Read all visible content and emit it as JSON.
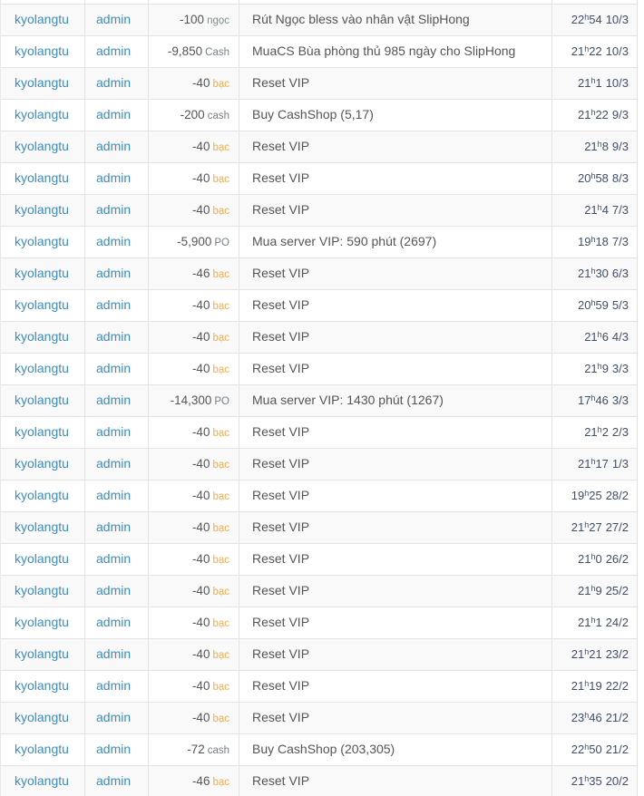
{
  "table": {
    "hour_separator": "h",
    "colors": {
      "link": "#3c8dbc",
      "text": "#555555",
      "time": "#3f5068",
      "ngoc": "#7d9180",
      "bac": "#f0ad4e",
      "gray": "#75808a",
      "stripe": "#f9f9f9",
      "border": "#e3e3e3"
    },
    "rows": [
      {
        "username": "kyolangtu",
        "admin": "admin",
        "amount": "-100",
        "unit": "ngọc",
        "unit_style": "ngoc",
        "description": "Rút Ngọc bless vào nhân vật SlipHong",
        "hour": "22",
        "minute": "54",
        "date": "10/3"
      },
      {
        "username": "kyolangtu",
        "admin": "admin",
        "amount": "-9,850",
        "unit": "Cash",
        "unit_style": "gray",
        "description": "MuaCS Bùa phòng thủ 985 ngày cho SlipHong",
        "hour": "21",
        "minute": "22",
        "date": "10/3"
      },
      {
        "username": "kyolangtu",
        "admin": "admin",
        "amount": "-40",
        "unit": "bạc",
        "unit_style": "bac",
        "description": "Reset VIP",
        "hour": "21",
        "minute": "1",
        "date": "10/3"
      },
      {
        "username": "kyolangtu",
        "admin": "admin",
        "amount": "-200",
        "unit": "cash",
        "unit_style": "gray",
        "description": "Buy CashShop (5,17)",
        "hour": "21",
        "minute": "22",
        "date": "9/3"
      },
      {
        "username": "kyolangtu",
        "admin": "admin",
        "amount": "-40",
        "unit": "bạc",
        "unit_style": "bac",
        "description": "Reset VIP",
        "hour": "21",
        "minute": "8",
        "date": "9/3"
      },
      {
        "username": "kyolangtu",
        "admin": "admin",
        "amount": "-40",
        "unit": "bạc",
        "unit_style": "bac",
        "description": "Reset VIP",
        "hour": "20",
        "minute": "58",
        "date": "8/3"
      },
      {
        "username": "kyolangtu",
        "admin": "admin",
        "amount": "-40",
        "unit": "bạc",
        "unit_style": "bac",
        "description": "Reset VIP",
        "hour": "21",
        "minute": "4",
        "date": "7/3"
      },
      {
        "username": "kyolangtu",
        "admin": "admin",
        "amount": "-5,900",
        "unit": "PO",
        "unit_style": "gray",
        "description": "Mua server VIP: 590 phút (2697)",
        "hour": "19",
        "minute": "18",
        "date": "7/3"
      },
      {
        "username": "kyolangtu",
        "admin": "admin",
        "amount": "-46",
        "unit": "bạc",
        "unit_style": "bac",
        "description": "Reset VIP",
        "hour": "21",
        "minute": "30",
        "date": "6/3"
      },
      {
        "username": "kyolangtu",
        "admin": "admin",
        "amount": "-40",
        "unit": "bạc",
        "unit_style": "bac",
        "description": "Reset VIP",
        "hour": "20",
        "minute": "59",
        "date": "5/3"
      },
      {
        "username": "kyolangtu",
        "admin": "admin",
        "amount": "-40",
        "unit": "bạc",
        "unit_style": "bac",
        "description": "Reset VIP",
        "hour": "21",
        "minute": "6",
        "date": "4/3"
      },
      {
        "username": "kyolangtu",
        "admin": "admin",
        "amount": "-40",
        "unit": "bạc",
        "unit_style": "bac",
        "description": "Reset VIP",
        "hour": "21",
        "minute": "9",
        "date": "3/3"
      },
      {
        "username": "kyolangtu",
        "admin": "admin",
        "amount": "-14,300",
        "unit": "PO",
        "unit_style": "gray",
        "description": "Mua server VIP: 1430 phút (1267)",
        "hour": "17",
        "minute": "46",
        "date": "3/3"
      },
      {
        "username": "kyolangtu",
        "admin": "admin",
        "amount": "-40",
        "unit": "bạc",
        "unit_style": "bac",
        "description": "Reset VIP",
        "hour": "21",
        "minute": "2",
        "date": "2/3"
      },
      {
        "username": "kyolangtu",
        "admin": "admin",
        "amount": "-40",
        "unit": "bạc",
        "unit_style": "bac",
        "description": "Reset VIP",
        "hour": "21",
        "minute": "17",
        "date": "1/3"
      },
      {
        "username": "kyolangtu",
        "admin": "admin",
        "amount": "-40",
        "unit": "bạc",
        "unit_style": "bac",
        "description": "Reset VIP",
        "hour": "19",
        "minute": "25",
        "date": "28/2"
      },
      {
        "username": "kyolangtu",
        "admin": "admin",
        "amount": "-40",
        "unit": "bạc",
        "unit_style": "bac",
        "description": "Reset VIP",
        "hour": "21",
        "minute": "27",
        "date": "27/2"
      },
      {
        "username": "kyolangtu",
        "admin": "admin",
        "amount": "-40",
        "unit": "bạc",
        "unit_style": "bac",
        "description": "Reset VIP",
        "hour": "21",
        "minute": "0",
        "date": "26/2"
      },
      {
        "username": "kyolangtu",
        "admin": "admin",
        "amount": "-40",
        "unit": "bạc",
        "unit_style": "bac",
        "description": "Reset VIP",
        "hour": "21",
        "minute": "9",
        "date": "25/2"
      },
      {
        "username": "kyolangtu",
        "admin": "admin",
        "amount": "-40",
        "unit": "bạc",
        "unit_style": "bac",
        "description": "Reset VIP",
        "hour": "21",
        "minute": "1",
        "date": "24/2"
      },
      {
        "username": "kyolangtu",
        "admin": "admin",
        "amount": "-40",
        "unit": "bạc",
        "unit_style": "bac",
        "description": "Reset VIP",
        "hour": "21",
        "minute": "21",
        "date": "23/2"
      },
      {
        "username": "kyolangtu",
        "admin": "admin",
        "amount": "-40",
        "unit": "bạc",
        "unit_style": "bac",
        "description": "Reset VIP",
        "hour": "21",
        "minute": "19",
        "date": "22/2"
      },
      {
        "username": "kyolangtu",
        "admin": "admin",
        "amount": "-40",
        "unit": "bạc",
        "unit_style": "bac",
        "description": "Reset VIP",
        "hour": "23",
        "minute": "46",
        "date": "21/2"
      },
      {
        "username": "kyolangtu",
        "admin": "admin",
        "amount": "-72",
        "unit": "cash",
        "unit_style": "gray",
        "description": "Buy CashShop (203,305)",
        "hour": "22",
        "minute": "50",
        "date": "21/2"
      },
      {
        "username": "kyolangtu",
        "admin": "admin",
        "amount": "-46",
        "unit": "bạc",
        "unit_style": "bac",
        "description": "Reset VIP",
        "hour": "21",
        "minute": "35",
        "date": "20/2"
      }
    ]
  }
}
